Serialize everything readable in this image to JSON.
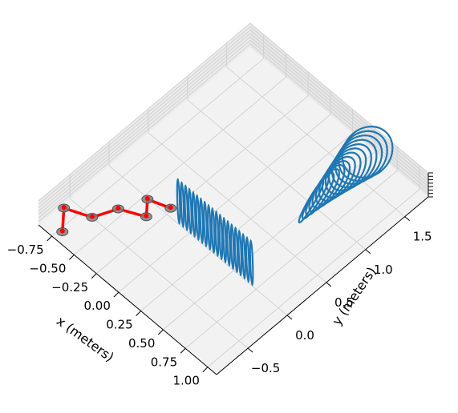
{
  "chart_data": {
    "type": "line",
    "projection": "3d",
    "grid": true,
    "xlabel": "x (meters)",
    "ylabel": "y (meters)",
    "zlabel": "",
    "xlim": [
      -0.9,
      1.1
    ],
    "ylim": [
      -0.9,
      1.8
    ],
    "x_ticks": [
      "−0.75",
      "−0.50",
      "−0.25",
      "0.00",
      "0.25",
      "0.50",
      "0.75",
      "1.00"
    ],
    "y_ticks": [
      "−0.5",
      "0.0",
      "0.5",
      "1.0",
      "1.5"
    ],
    "series": [
      {
        "kind": "robot-arm",
        "color": "#ff0000",
        "joint_color": "#808080",
        "points": [
          {
            "x": -0.72,
            "y": -0.8
          },
          {
            "x": -0.87,
            "y": -0.61
          },
          {
            "x": -0.65,
            "y": -0.5
          },
          {
            "x": -0.56,
            "y": -0.27
          },
          {
            "x": -0.35,
            "y": -0.15
          },
          {
            "x": -0.46,
            "y": -0.01
          },
          {
            "x": -0.27,
            "y": 0.07
          }
        ]
      },
      {
        "kind": "helical-trajectory",
        "color": "#1f77b4",
        "straight_x_range": [
          -0.27,
          0.55
        ],
        "straight_y": 0.15,
        "loop_count": 34
      }
    ]
  }
}
